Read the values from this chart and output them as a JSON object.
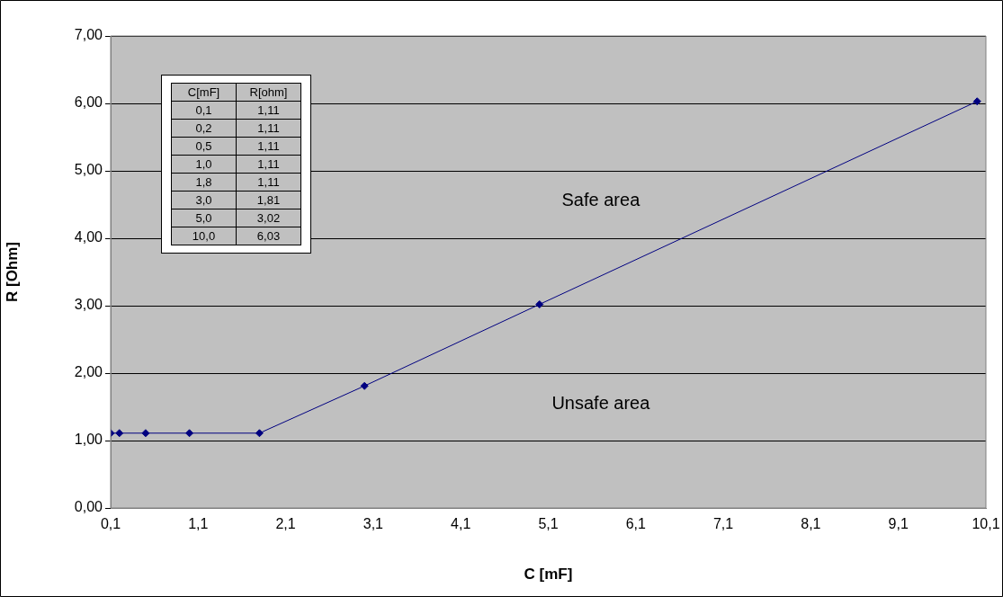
{
  "chart_data": {
    "type": "line",
    "xlabel": "C [mF]",
    "ylabel": "R [Ohm]",
    "x": [
      0.1,
      0.2,
      0.5,
      1.0,
      1.8,
      3.0,
      5.0,
      10.0
    ],
    "series": [
      {
        "color": "#000080",
        "values": [
          1.11,
          1.11,
          1.11,
          1.11,
          1.11,
          1.81,
          3.02,
          6.03
        ]
      }
    ],
    "xlim": [
      0.1,
      10.1
    ],
    "xticks": [
      {
        "value": 0.1,
        "label": "0,1"
      },
      {
        "value": 1.1,
        "label": "1,1"
      },
      {
        "value": 2.1,
        "label": "2,1"
      },
      {
        "value": 3.1,
        "label": "3,1"
      },
      {
        "value": 4.1,
        "label": "4,1"
      },
      {
        "value": 5.1,
        "label": "5,1"
      },
      {
        "value": 6.1,
        "label": "6,1"
      },
      {
        "value": 7.1,
        "label": "7,1"
      },
      {
        "value": 8.1,
        "label": "8,1"
      },
      {
        "value": 9.1,
        "label": "9,1"
      },
      {
        "value": 10.1,
        "label": "10,1"
      }
    ],
    "ylim": [
      0,
      7
    ],
    "yticks": [
      {
        "value": 0,
        "label": "0,00"
      },
      {
        "value": 1,
        "label": "1,00"
      },
      {
        "value": 2,
        "label": "2,00"
      },
      {
        "value": 3,
        "label": "3,00"
      },
      {
        "value": 4,
        "label": "4,00"
      },
      {
        "value": 5,
        "label": "5,00"
      },
      {
        "value": 6,
        "label": "6,00"
      },
      {
        "value": 7,
        "label": "7,00"
      }
    ],
    "grid": "y",
    "legend": false,
    "marker": "diamond",
    "line_style": "solid",
    "annotations": [
      "Safe area",
      "Unsafe area",
      "C[mF]",
      "R[ohm]",
      "0,1",
      "1,11",
      "0,2",
      "1,11",
      "0,5",
      "1,11",
      "1,0",
      "1,11",
      "1,8",
      "1,11",
      "3,0",
      "1,81",
      "5,0",
      "3,02",
      "10,0",
      "6,03"
    ]
  }
}
